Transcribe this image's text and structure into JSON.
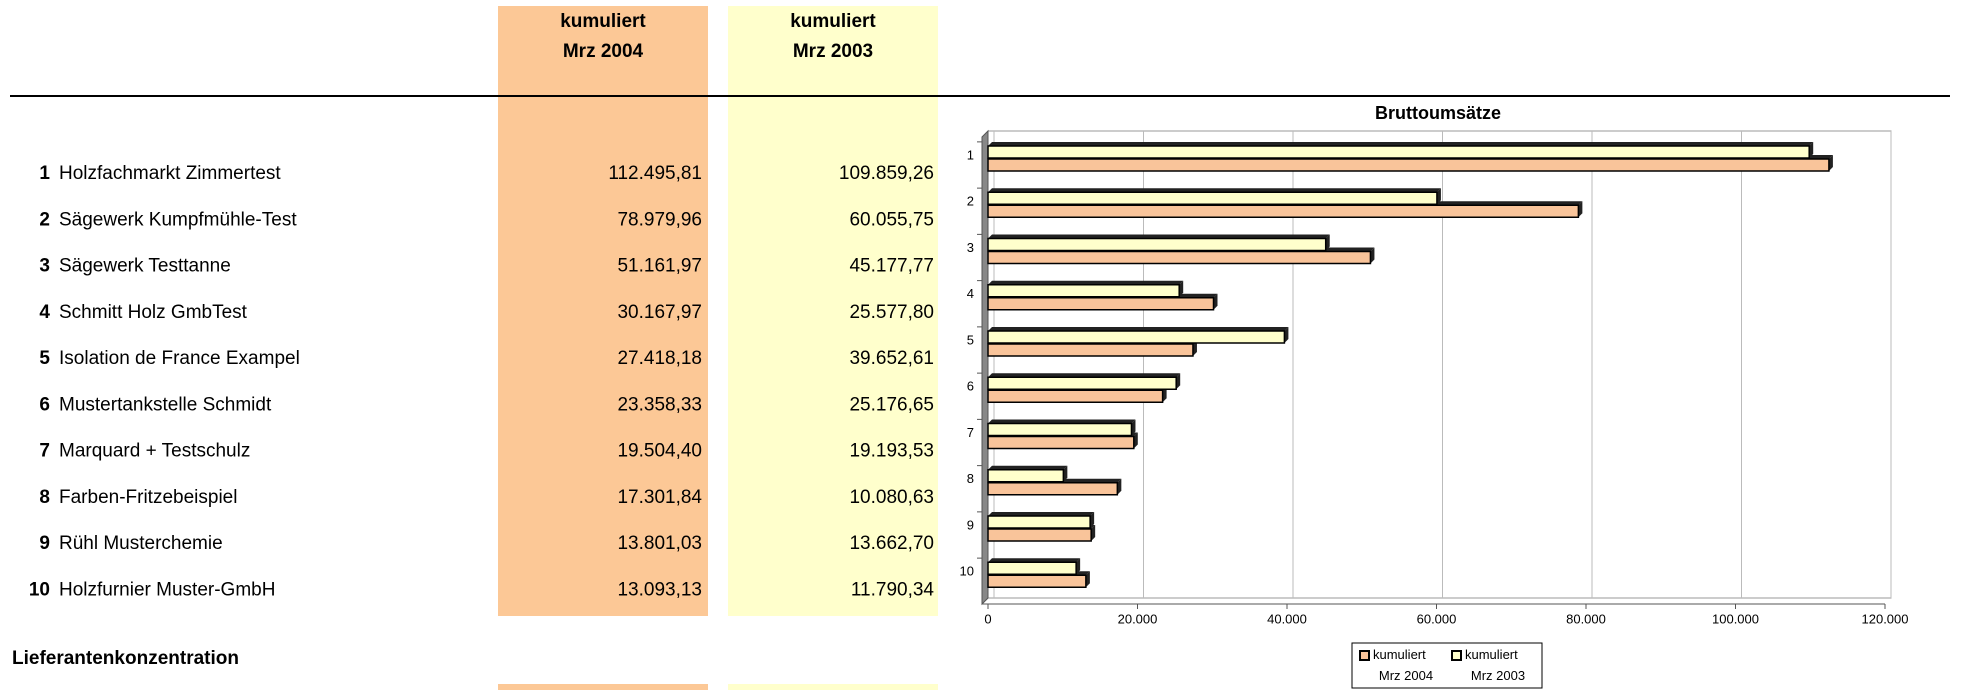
{
  "header": {
    "columns": [
      {
        "line1": "kumuliert",
        "line2": "Mrz 2004"
      },
      {
        "line1": "kumuliert",
        "line2": "Mrz 2003"
      }
    ]
  },
  "table": {
    "rows": [
      {
        "rank": "1",
        "name": "Holzfachmarkt Zimmertest",
        "values": [
          "112.495,81",
          "109.859,26"
        ]
      },
      {
        "rank": "2",
        "name": "Sägewerk Kumpfmühle-Test",
        "values": [
          "78.979,96",
          "60.055,75"
        ]
      },
      {
        "rank": "3",
        "name": "Sägewerk Testtanne",
        "values": [
          "51.161,97",
          "45.177,77"
        ]
      },
      {
        "rank": "4",
        "name": "Schmitt Holz GmbTest",
        "values": [
          "30.167,97",
          "25.577,80"
        ]
      },
      {
        "rank": "5",
        "name": "Isolation de France Exampel",
        "values": [
          "27.418,18",
          "39.652,61"
        ]
      },
      {
        "rank": "6",
        "name": "Mustertankstelle Schmidt",
        "values": [
          "23.358,33",
          "25.176,65"
        ]
      },
      {
        "rank": "7",
        "name": "Marquard + Testschulz",
        "values": [
          "19.504,40",
          "19.193,53"
        ]
      },
      {
        "rank": "8",
        "name": "Farben-Fritzebeispiel",
        "values": [
          "17.301,84",
          "10.080,63"
        ]
      },
      {
        "rank": "9",
        "name": "Rühl Musterchemie",
        "values": [
          "13.801,03",
          "13.662,70"
        ]
      },
      {
        "rank": "10",
        "name": "Holzfurnier Muster-GmbH",
        "values": [
          "13.093,13",
          "11.790,34"
        ]
      }
    ]
  },
  "section_title": "Lieferantenkonzentration",
  "chart": {
    "type": "bar",
    "orientation": "horizontal",
    "title": "Bruttoumsätze",
    "categories": [
      "1",
      "2",
      "3",
      "4",
      "5",
      "6",
      "7",
      "8",
      "9",
      "10"
    ],
    "series": [
      {
        "name": "kumuliert Mrz 2004",
        "color": "#f9c49a",
        "values": [
          112495.81,
          78979.96,
          51161.97,
          30167.97,
          27418.18,
          23358.33,
          19504.4,
          17301.84,
          13801.03,
          13093.13
        ]
      },
      {
        "name": "kumuliert Mrz 2003",
        "color": "#ffffcc",
        "values": [
          109859.26,
          60055.75,
          45177.77,
          25577.8,
          39652.61,
          25176.65,
          19193.53,
          10080.63,
          13662.7,
          11790.34
        ]
      }
    ],
    "xlim": [
      0,
      120000
    ],
    "xticks": [
      0,
      {
        "value": 20000,
        "label": "20.000"
      },
      {
        "value": 40000,
        "label": "40.000"
      },
      {
        "value": 60000,
        "label": "60.000"
      },
      {
        "value": 80000,
        "label": "80.000"
      },
      {
        "value": 100000,
        "label": "100.000"
      },
      {
        "value": 120000,
        "label": "120.000"
      }
    ],
    "grid": true,
    "legend": "bottom"
  }
}
